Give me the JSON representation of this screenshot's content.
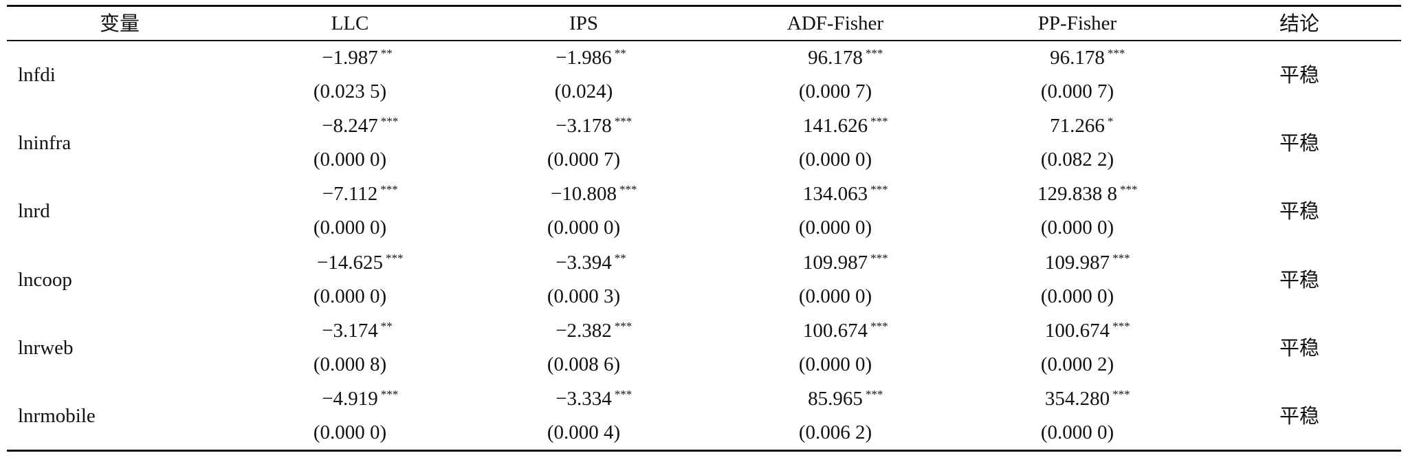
{
  "table": {
    "header": [
      "变量",
      "LLC",
      "IPS",
      "ADF-Fisher",
      "PP-Fisher",
      "结论"
    ],
    "rows": [
      {
        "variable": "lnfdi",
        "cells": [
          {
            "stat": "−1.987",
            "stars": "**",
            "p": "(0.023 5)"
          },
          {
            "stat": "−1.986",
            "stars": "**",
            "p": "(0.024)"
          },
          {
            "stat": "96.178",
            "stars": "***",
            "p": "(0.000 7)"
          },
          {
            "stat": "96.178",
            "stars": "***",
            "p": "(0.000 7)"
          }
        ],
        "conclusion": "平稳"
      },
      {
        "variable": "lninfra",
        "cells": [
          {
            "stat": "−8.247",
            "stars": "***",
            "p": "(0.000 0)"
          },
          {
            "stat": "−3.178",
            "stars": "***",
            "p": "(0.000 7)"
          },
          {
            "stat": "141.626",
            "stars": "***",
            "p": "(0.000 0)"
          },
          {
            "stat": "71.266",
            "stars": "*",
            "p": "(0.082 2)"
          }
        ],
        "conclusion": "平稳"
      },
      {
        "variable": "lnrd",
        "cells": [
          {
            "stat": "−7.112",
            "stars": "***",
            "p": "(0.000 0)"
          },
          {
            "stat": "−10.808",
            "stars": "***",
            "p": "(0.000 0)"
          },
          {
            "stat": "134.063",
            "stars": "***",
            "p": "(0.000 0)"
          },
          {
            "stat": "129.838 8",
            "stars": "***",
            "p": "(0.000 0)"
          }
        ],
        "conclusion": "平稳"
      },
      {
        "variable": "lncoop",
        "cells": [
          {
            "stat": "−14.625",
            "stars": "***",
            "p": "(0.000 0)"
          },
          {
            "stat": "−3.394",
            "stars": "**",
            "p": "(0.000 3)"
          },
          {
            "stat": "109.987",
            "stars": "***",
            "p": "(0.000 0)"
          },
          {
            "stat": "109.987",
            "stars": "***",
            "p": "(0.000 0)"
          }
        ],
        "conclusion": "平稳"
      },
      {
        "variable": "lnrweb",
        "cells": [
          {
            "stat": "−3.174",
            "stars": "**",
            "p": "(0.000 8)"
          },
          {
            "stat": "−2.382",
            "stars": "***",
            "p": "(0.008 6)"
          },
          {
            "stat": "100.674",
            "stars": "***",
            "p": "(0.000 0)"
          },
          {
            "stat": "100.674",
            "stars": "***",
            "p": "(0.000 2)"
          }
        ],
        "conclusion": "平稳"
      },
      {
        "variable": "lnrmobile",
        "cells": [
          {
            "stat": "−4.919",
            "stars": "***",
            "p": "(0.000 0)"
          },
          {
            "stat": "−3.334",
            "stars": "***",
            "p": "(0.000 4)"
          },
          {
            "stat": "85.965",
            "stars": "***",
            "p": "(0.006 2)"
          },
          {
            "stat": "354.280",
            "stars": "***",
            "p": "(0.000 0)"
          }
        ],
        "conclusion": "平稳"
      }
    ]
  }
}
